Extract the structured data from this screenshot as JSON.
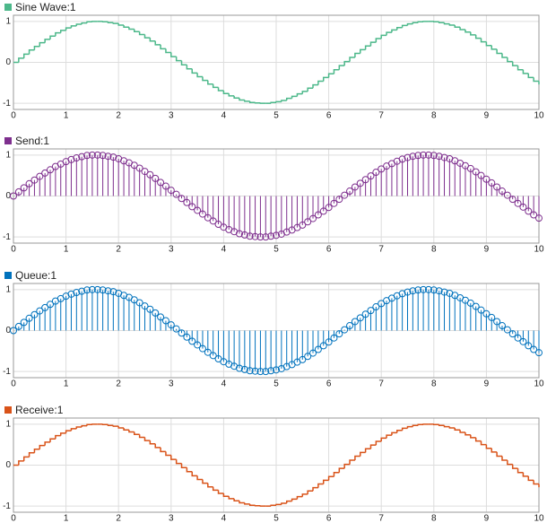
{
  "chart_data": [
    {
      "type": "stairs",
      "title": "Sine Wave:1",
      "color": "#4cb88a",
      "x": [
        0,
        0.1,
        0.2,
        0.3,
        0.4,
        0.5,
        0.6,
        0.7,
        0.8,
        0.9,
        1,
        1.1,
        1.2,
        1.3,
        1.4,
        1.5,
        1.6,
        1.7,
        1.8,
        1.9,
        2,
        2.1,
        2.2,
        2.3,
        2.4,
        2.5,
        2.6,
        2.7,
        2.8,
        2.9,
        3,
        3.1,
        3.2,
        3.3,
        3.4,
        3.5,
        3.6,
        3.7,
        3.8,
        3.9,
        4,
        4.1,
        4.2,
        4.3,
        4.4,
        4.5,
        4.6,
        4.7,
        4.8,
        4.9,
        5,
        5.1,
        5.2,
        5.3,
        5.4,
        5.5,
        5.6,
        5.7,
        5.8,
        5.9,
        6,
        6.1,
        6.2,
        6.3,
        6.4,
        6.5,
        6.6,
        6.7,
        6.8,
        6.9,
        7,
        7.1,
        7.2,
        7.3,
        7.4,
        7.5,
        7.6,
        7.7,
        7.8,
        7.9,
        8,
        8.1,
        8.2,
        8.3,
        8.4,
        8.5,
        8.6,
        8.7,
        8.8,
        8.9,
        9,
        9.1,
        9.2,
        9.3,
        9.4,
        9.5,
        9.6,
        9.7,
        9.8,
        9.9,
        10
      ],
      "values": [
        0,
        0.1,
        0.2,
        0.3,
        0.39,
        0.48,
        0.56,
        0.64,
        0.72,
        0.78,
        0.84,
        0.89,
        0.93,
        0.96,
        0.99,
        1,
        1,
        0.99,
        0.97,
        0.95,
        0.91,
        0.86,
        0.81,
        0.75,
        0.68,
        0.6,
        0.52,
        0.43,
        0.33,
        0.24,
        0.14,
        0.04,
        -0.06,
        -0.16,
        -0.26,
        -0.35,
        -0.44,
        -0.53,
        -0.61,
        -0.69,
        -0.76,
        -0.82,
        -0.87,
        -0.92,
        -0.95,
        -0.98,
        -0.99,
        -1,
        -1,
        -0.98,
        -0.96,
        -0.93,
        -0.88,
        -0.83,
        -0.77,
        -0.71,
        -0.63,
        -0.55,
        -0.46,
        -0.37,
        -0.28,
        -0.18,
        -0.08,
        0.02,
        0.12,
        0.22,
        0.31,
        0.4,
        0.49,
        0.58,
        0.66,
        0.73,
        0.79,
        0.85,
        0.9,
        0.94,
        0.97,
        0.99,
        1,
        1,
        0.99,
        0.97,
        0.94,
        0.91,
        0.86,
        0.8,
        0.74,
        0.67,
        0.59,
        0.5,
        0.41,
        0.32,
        0.22,
        0.12,
        0.02,
        -0.08,
        -0.18,
        -0.27,
        -0.37,
        -0.46,
        -0.54
      ],
      "xlim": [
        0,
        10
      ],
      "ylim": [
        -1.15,
        1.15
      ],
      "xticks": [
        0,
        1,
        2,
        3,
        4,
        5,
        6,
        7,
        8,
        9,
        10
      ],
      "yticks": [
        -1,
        0,
        1
      ],
      "grid": true
    },
    {
      "type": "stem",
      "title": "Send:1",
      "color": "#7e2f8e",
      "x": [
        0,
        0.1,
        0.2,
        0.3,
        0.4,
        0.5,
        0.6,
        0.7,
        0.8,
        0.9,
        1,
        1.1,
        1.2,
        1.3,
        1.4,
        1.5,
        1.6,
        1.7,
        1.8,
        1.9,
        2,
        2.1,
        2.2,
        2.3,
        2.4,
        2.5,
        2.6,
        2.7,
        2.8,
        2.9,
        3,
        3.1,
        3.2,
        3.3,
        3.4,
        3.5,
        3.6,
        3.7,
        3.8,
        3.9,
        4,
        4.1,
        4.2,
        4.3,
        4.4,
        4.5,
        4.6,
        4.7,
        4.8,
        4.9,
        5,
        5.1,
        5.2,
        5.3,
        5.4,
        5.5,
        5.6,
        5.7,
        5.8,
        5.9,
        6,
        6.1,
        6.2,
        6.3,
        6.4,
        6.5,
        6.6,
        6.7,
        6.8,
        6.9,
        7,
        7.1,
        7.2,
        7.3,
        7.4,
        7.5,
        7.6,
        7.7,
        7.8,
        7.9,
        8,
        8.1,
        8.2,
        8.3,
        8.4,
        8.5,
        8.6,
        8.7,
        8.8,
        8.9,
        9,
        9.1,
        9.2,
        9.3,
        9.4,
        9.5,
        9.6,
        9.7,
        9.8,
        9.9,
        10
      ],
      "values": [
        0,
        0.1,
        0.2,
        0.3,
        0.39,
        0.48,
        0.56,
        0.64,
        0.72,
        0.78,
        0.84,
        0.89,
        0.93,
        0.96,
        0.99,
        1,
        1,
        0.99,
        0.97,
        0.95,
        0.91,
        0.86,
        0.81,
        0.75,
        0.68,
        0.6,
        0.52,
        0.43,
        0.33,
        0.24,
        0.14,
        0.04,
        -0.06,
        -0.16,
        -0.26,
        -0.35,
        -0.44,
        -0.53,
        -0.61,
        -0.69,
        -0.76,
        -0.82,
        -0.87,
        -0.92,
        -0.95,
        -0.98,
        -0.99,
        -1,
        -1,
        -0.98,
        -0.96,
        -0.93,
        -0.88,
        -0.83,
        -0.77,
        -0.71,
        -0.63,
        -0.55,
        -0.46,
        -0.37,
        -0.28,
        -0.18,
        -0.08,
        0.02,
        0.12,
        0.22,
        0.31,
        0.4,
        0.49,
        0.58,
        0.66,
        0.73,
        0.79,
        0.85,
        0.9,
        0.94,
        0.97,
        0.99,
        1,
        1,
        0.99,
        0.97,
        0.94,
        0.91,
        0.86,
        0.8,
        0.74,
        0.67,
        0.59,
        0.5,
        0.41,
        0.32,
        0.22,
        0.12,
        0.02,
        -0.08,
        -0.18,
        -0.27,
        -0.37,
        -0.46,
        -0.54
      ],
      "xlim": [
        0,
        10
      ],
      "ylim": [
        -1.15,
        1.15
      ],
      "xticks": [
        0,
        1,
        2,
        3,
        4,
        5,
        6,
        7,
        8,
        9,
        10
      ],
      "yticks": [
        -1,
        0,
        1
      ],
      "grid": true
    },
    {
      "type": "stem",
      "title": "Queue:1",
      "color": "#0072bd",
      "x": [
        0,
        0.1,
        0.2,
        0.3,
        0.4,
        0.5,
        0.6,
        0.7,
        0.8,
        0.9,
        1,
        1.1,
        1.2,
        1.3,
        1.4,
        1.5,
        1.6,
        1.7,
        1.8,
        1.9,
        2,
        2.1,
        2.2,
        2.3,
        2.4,
        2.5,
        2.6,
        2.7,
        2.8,
        2.9,
        3,
        3.1,
        3.2,
        3.3,
        3.4,
        3.5,
        3.6,
        3.7,
        3.8,
        3.9,
        4,
        4.1,
        4.2,
        4.3,
        4.4,
        4.5,
        4.6,
        4.7,
        4.8,
        4.9,
        5,
        5.1,
        5.2,
        5.3,
        5.4,
        5.5,
        5.6,
        5.7,
        5.8,
        5.9,
        6,
        6.1,
        6.2,
        6.3,
        6.4,
        6.5,
        6.6,
        6.7,
        6.8,
        6.9,
        7,
        7.1,
        7.2,
        7.3,
        7.4,
        7.5,
        7.6,
        7.7,
        7.8,
        7.9,
        8,
        8.1,
        8.2,
        8.3,
        8.4,
        8.5,
        8.6,
        8.7,
        8.8,
        8.9,
        9,
        9.1,
        9.2,
        9.3,
        9.4,
        9.5,
        9.6,
        9.7,
        9.8,
        9.9,
        10
      ],
      "values": [
        0,
        0.1,
        0.2,
        0.3,
        0.39,
        0.48,
        0.56,
        0.64,
        0.72,
        0.78,
        0.84,
        0.89,
        0.93,
        0.96,
        0.99,
        1,
        1,
        0.99,
        0.97,
        0.95,
        0.91,
        0.86,
        0.81,
        0.75,
        0.68,
        0.6,
        0.52,
        0.43,
        0.33,
        0.24,
        0.14,
        0.04,
        -0.06,
        -0.16,
        -0.26,
        -0.35,
        -0.44,
        -0.53,
        -0.61,
        -0.69,
        -0.76,
        -0.82,
        -0.87,
        -0.92,
        -0.95,
        -0.98,
        -0.99,
        -1,
        -1,
        -0.98,
        -0.96,
        -0.93,
        -0.88,
        -0.83,
        -0.77,
        -0.71,
        -0.63,
        -0.55,
        -0.46,
        -0.37,
        -0.28,
        -0.18,
        -0.08,
        0.02,
        0.12,
        0.22,
        0.31,
        0.4,
        0.49,
        0.58,
        0.66,
        0.73,
        0.79,
        0.85,
        0.9,
        0.94,
        0.97,
        0.99,
        1,
        1,
        0.99,
        0.97,
        0.94,
        0.91,
        0.86,
        0.8,
        0.74,
        0.67,
        0.59,
        0.5,
        0.41,
        0.32,
        0.22,
        0.12,
        0.02,
        -0.08,
        -0.18,
        -0.27,
        -0.37,
        -0.46,
        -0.54
      ],
      "xlim": [
        0,
        10
      ],
      "ylim": [
        -1.15,
        1.15
      ],
      "xticks": [
        0,
        1,
        2,
        3,
        4,
        5,
        6,
        7,
        8,
        9,
        10
      ],
      "yticks": [
        -1,
        0,
        1
      ],
      "grid": true
    },
    {
      "type": "stairs",
      "title": "Receive:1",
      "color": "#d95319",
      "x": [
        0,
        0.1,
        0.2,
        0.3,
        0.4,
        0.5,
        0.6,
        0.7,
        0.8,
        0.9,
        1,
        1.1,
        1.2,
        1.3,
        1.4,
        1.5,
        1.6,
        1.7,
        1.8,
        1.9,
        2,
        2.1,
        2.2,
        2.3,
        2.4,
        2.5,
        2.6,
        2.7,
        2.8,
        2.9,
        3,
        3.1,
        3.2,
        3.3,
        3.4,
        3.5,
        3.6,
        3.7,
        3.8,
        3.9,
        4,
        4.1,
        4.2,
        4.3,
        4.4,
        4.5,
        4.6,
        4.7,
        4.8,
        4.9,
        5,
        5.1,
        5.2,
        5.3,
        5.4,
        5.5,
        5.6,
        5.7,
        5.8,
        5.9,
        6,
        6.1,
        6.2,
        6.3,
        6.4,
        6.5,
        6.6,
        6.7,
        6.8,
        6.9,
        7,
        7.1,
        7.2,
        7.3,
        7.4,
        7.5,
        7.6,
        7.7,
        7.8,
        7.9,
        8,
        8.1,
        8.2,
        8.3,
        8.4,
        8.5,
        8.6,
        8.7,
        8.8,
        8.9,
        9,
        9.1,
        9.2,
        9.3,
        9.4,
        9.5,
        9.6,
        9.7,
        9.8,
        9.9,
        10
      ],
      "values": [
        0,
        0.1,
        0.2,
        0.3,
        0.39,
        0.48,
        0.56,
        0.64,
        0.72,
        0.78,
        0.84,
        0.89,
        0.93,
        0.96,
        0.99,
        1,
        1,
        0.99,
        0.97,
        0.95,
        0.91,
        0.86,
        0.81,
        0.75,
        0.68,
        0.6,
        0.52,
        0.43,
        0.33,
        0.24,
        0.14,
        0.04,
        -0.06,
        -0.16,
        -0.26,
        -0.35,
        -0.44,
        -0.53,
        -0.61,
        -0.69,
        -0.76,
        -0.82,
        -0.87,
        -0.92,
        -0.95,
        -0.98,
        -0.99,
        -1,
        -1,
        -0.98,
        -0.96,
        -0.93,
        -0.88,
        -0.83,
        -0.77,
        -0.71,
        -0.63,
        -0.55,
        -0.46,
        -0.37,
        -0.28,
        -0.18,
        -0.08,
        0.02,
        0.12,
        0.22,
        0.31,
        0.4,
        0.49,
        0.58,
        0.66,
        0.73,
        0.79,
        0.85,
        0.9,
        0.94,
        0.97,
        0.99,
        1,
        1,
        0.99,
        0.97,
        0.94,
        0.91,
        0.86,
        0.8,
        0.74,
        0.67,
        0.59,
        0.5,
        0.41,
        0.32,
        0.22,
        0.12,
        0.02,
        -0.08,
        -0.18,
        -0.27,
        -0.37,
        -0.46,
        -0.54
      ],
      "xlim": [
        0,
        10
      ],
      "ylim": [
        -1.15,
        1.15
      ],
      "xticks": [
        0,
        1,
        2,
        3,
        4,
        5,
        6,
        7,
        8,
        9,
        10
      ],
      "yticks": [
        -1,
        0,
        1
      ],
      "grid": true
    }
  ]
}
